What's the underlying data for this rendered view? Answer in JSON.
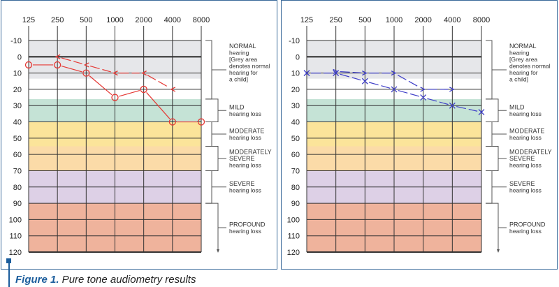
{
  "caption": {
    "label": "Figure 1.",
    "text": " Pure tone audiometry results"
  },
  "chart_data": [
    {
      "type": "line",
      "x_categories": [
        125,
        250,
        500,
        1000,
        2000,
        4000,
        8000
      ],
      "yticks": [
        -10,
        0,
        10,
        20,
        30,
        40,
        50,
        60,
        70,
        80,
        90,
        100,
        110,
        120
      ],
      "ylim": [
        -10,
        120
      ],
      "y_inverted": true,
      "grid": true,
      "bands": [
        {
          "from": -10,
          "to": 13.5,
          "color": "#e6e7ea"
        },
        {
          "from": 13.5,
          "to": 26,
          "color": "#ffffff"
        },
        {
          "from": 26,
          "to": 40,
          "color": "#c5e3d6"
        },
        {
          "from": 40,
          "to": 55,
          "color": "#fbe49a"
        },
        {
          "from": 55,
          "to": 70,
          "color": "#fbdba8"
        },
        {
          "from": 70,
          "to": 90,
          "color": "#ddd0e6"
        },
        {
          "from": 90,
          "to": 120,
          "color": "#efb39c"
        }
      ],
      "series": [
        {
          "marker": "circle",
          "color": "#e53935",
          "x": [
            125,
            250,
            500,
            1000,
            2000,
            4000,
            8000
          ],
          "y": [
            5,
            5,
            10,
            25,
            20,
            40,
            40
          ]
        },
        {
          "marker": "<",
          "color": "#e53935",
          "x": [
            250,
            500,
            1000,
            2000,
            4000
          ],
          "y": [
            0,
            5,
            10,
            10,
            20
          ]
        }
      ]
    },
    {
      "type": "line",
      "x_categories": [
        125,
        250,
        500,
        1000,
        2000,
        4000,
        8000
      ],
      "yticks": [
        -10,
        0,
        10,
        20,
        30,
        40,
        50,
        60,
        70,
        80,
        90,
        100,
        110,
        120
      ],
      "ylim": [
        -10,
        120
      ],
      "y_inverted": true,
      "grid": true,
      "bands": [
        {
          "from": -10,
          "to": 13.5,
          "color": "#e6e7ea"
        },
        {
          "from": 13.5,
          "to": 26,
          "color": "#ffffff"
        },
        {
          "from": 26,
          "to": 40,
          "color": "#c5e3d6"
        },
        {
          "from": 40,
          "to": 55,
          "color": "#fbe49a"
        },
        {
          "from": 55,
          "to": 70,
          "color": "#fbdba8"
        },
        {
          "from": 70,
          "to": 90,
          "color": "#ddd0e6"
        },
        {
          "from": 90,
          "to": 120,
          "color": "#efb39c"
        }
      ],
      "series": [
        {
          "marker": "x",
          "color": "#3f3fc8",
          "x": [
            125,
            250,
            500,
            1000,
            2000,
            4000,
            8000
          ],
          "y": [
            10,
            10,
            15,
            20,
            25,
            30,
            34
          ]
        },
        {
          "marker": ">",
          "color": "#3f3fc8",
          "x": [
            250,
            500,
            1000,
            2000,
            4000
          ],
          "y": [
            9,
            10,
            10,
            20,
            20
          ]
        }
      ]
    }
  ],
  "categories": [
    {
      "from": -10,
      "to": 26,
      "lines": [
        "NORMAL",
        "hearing",
        "[Grey area",
        "denotes normal",
        "hearing for",
        "a child]"
      ]
    },
    {
      "from": 26,
      "to": 40,
      "lines": [
        "MILD",
        "hearing loss"
      ]
    },
    {
      "from": 40,
      "to": 55,
      "lines": [
        "MODERATE",
        "hearing loss"
      ]
    },
    {
      "from": 55,
      "to": 70,
      "lines": [
        "MODERATELY",
        "SEVERE",
        "hearing loss"
      ]
    },
    {
      "from": 70,
      "to": 90,
      "lines": [
        "SEVERE",
        "hearing loss"
      ]
    },
    {
      "from": 90,
      "to": 120,
      "lines": [
        "PROFOUND",
        "hearing loss"
      ]
    }
  ]
}
